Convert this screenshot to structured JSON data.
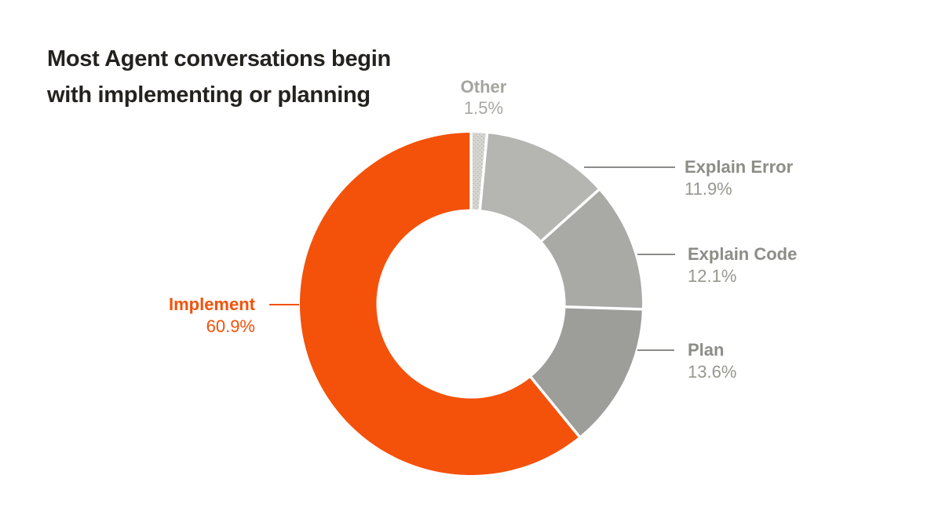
{
  "title": {
    "line1": "Most Agent conversations begin",
    "line2": "with implementing or planning"
  },
  "chart_data": {
    "type": "pie",
    "subtype": "donut",
    "title": "Most Agent conversations begin with implementing or planning",
    "unit": "%",
    "start_angle_deg": 0,
    "direction": "clockwise",
    "inner_radius_ratio": 0.553,
    "legend_position": "outside-callouts",
    "segments": [
      {
        "label": "Other",
        "value": 1.5,
        "display": "1.5%",
        "color": "#d7d7d2",
        "pattern": "dots",
        "dot_color": "#a9a9a5"
      },
      {
        "label": "Explain Error",
        "value": 11.9,
        "display": "11.9%",
        "color": "#b5b5b1"
      },
      {
        "label": "Explain Code",
        "value": 12.1,
        "display": "12.1%",
        "color": "#a9a9a5"
      },
      {
        "label": "Plan",
        "value": 13.6,
        "display": "13.6%",
        "color": "#9d9d99"
      },
      {
        "label": "Implement",
        "value": 60.9,
        "display": "60.9%",
        "color": "#f4510a"
      }
    ],
    "colors": {
      "accent_orange": "#f4510a",
      "label_gray_bold": "#8d8d87",
      "label_gray_value": "#97978f",
      "other_label_gray": "#a5a5a0",
      "leader_line_gray": "#8c8c88",
      "title_color": "#23221e",
      "separator": "#ffffff",
      "background": "#ffffff"
    }
  }
}
